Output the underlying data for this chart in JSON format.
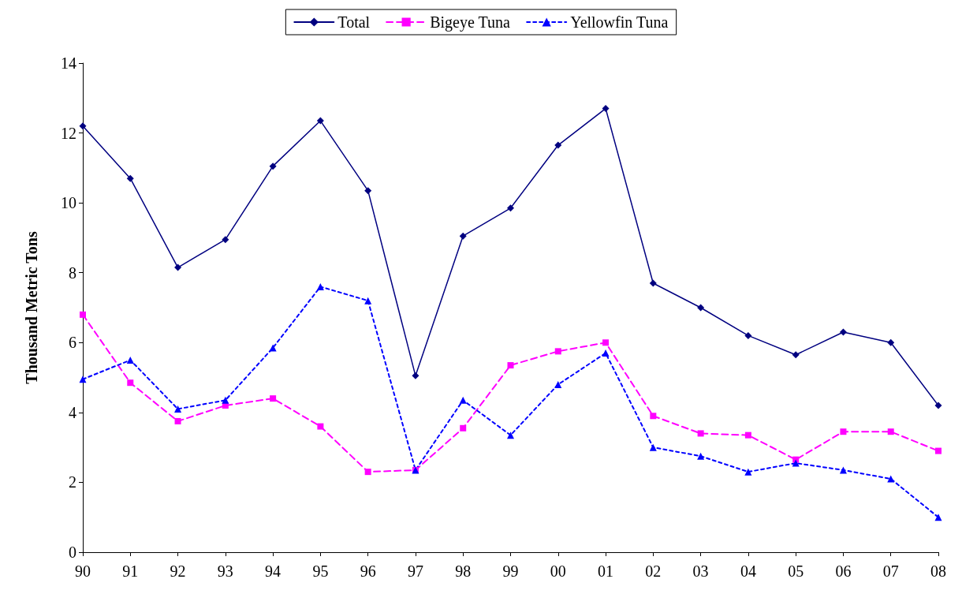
{
  "chart_data": {
    "type": "line",
    "ylabel": "Thousand Metric Tons",
    "categories": [
      "90",
      "91",
      "92",
      "93",
      "94",
      "95",
      "96",
      "97",
      "98",
      "99",
      "00",
      "01",
      "02",
      "03",
      "04",
      "05",
      "06",
      "07",
      "08"
    ],
    "series": [
      {
        "name": "Total",
        "color": "#000080",
        "marker": "diamond",
        "line_style": "solid",
        "values": [
          12.2,
          10.7,
          8.15,
          8.95,
          11.05,
          12.35,
          10.35,
          5.05,
          9.05,
          9.85,
          11.65,
          12.7,
          7.7,
          7.0,
          6.2,
          5.65,
          6.3,
          6.0,
          4.2
        ]
      },
      {
        "name": "Bigeye Tuna",
        "color": "#ff00ff",
        "marker": "square",
        "line_style": "dashed",
        "values": [
          6.8,
          4.85,
          3.75,
          4.2,
          4.4,
          3.6,
          2.3,
          2.35,
          3.55,
          5.35,
          5.75,
          6.0,
          3.9,
          3.4,
          3.35,
          2.65,
          3.45,
          3.45,
          2.9
        ]
      },
      {
        "name": "Yellowfin Tuna",
        "color": "#0000ff",
        "marker": "triangle",
        "line_style": "dotted",
        "values": [
          4.95,
          5.5,
          4.1,
          4.35,
          5.85,
          7.6,
          7.2,
          2.35,
          4.35,
          3.35,
          4.8,
          5.7,
          3.0,
          2.75,
          2.3,
          2.55,
          2.35,
          2.1,
          1.0
        ]
      }
    ],
    "ylim": [
      0,
      14
    ],
    "yticks": [
      0,
      2,
      4,
      6,
      8,
      10,
      12,
      14
    ],
    "grid": false,
    "legend": "top"
  }
}
